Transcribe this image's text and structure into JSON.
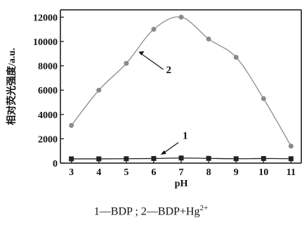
{
  "chart_data": {
    "type": "line",
    "x": [
      3,
      4,
      5,
      6,
      7,
      8,
      9,
      10,
      11
    ],
    "xlabel": "pH",
    "ylabel": "相对荧光强度/a.u.",
    "xlim": [
      2.6,
      11.4
    ],
    "ylim": [
      0,
      12600
    ],
    "xticks": [
      3,
      4,
      5,
      6,
      7,
      8,
      9,
      10,
      11
    ],
    "yticks": [
      0,
      2000,
      4000,
      6000,
      8000,
      10000,
      12000
    ],
    "grid": false,
    "series": [
      {
        "name": "1",
        "marker": "square",
        "color": "#222222",
        "values": [
          350,
          350,
          360,
          380,
          420,
          390,
          360,
          380,
          360
        ]
      },
      {
        "name": "2",
        "marker": "circle",
        "color": "#8a8a8a",
        "values": [
          3100,
          6000,
          8200,
          11000,
          12000,
          10200,
          8700,
          5300,
          1400
        ]
      }
    ]
  },
  "caption": {
    "text_main": "1—BDP ; 2—BDP+Hg",
    "superscript": "2+"
  }
}
